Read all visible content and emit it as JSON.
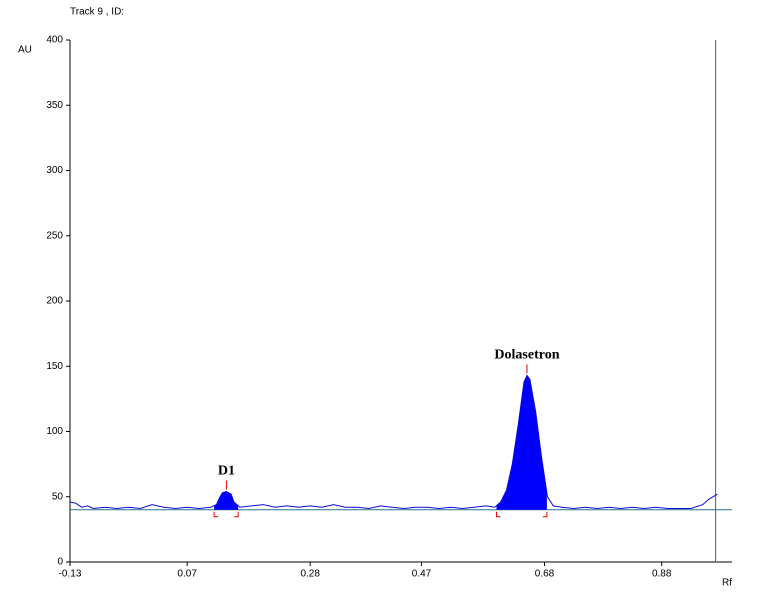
{
  "chart_data": {
    "type": "line",
    "title": "Track  9 , ID:",
    "y_label": "AU",
    "x_label": "Rf",
    "xlim": [
      -0.13,
      1.0
    ],
    "ylim": [
      0,
      400
    ],
    "xticks": [
      -0.13,
      0.07,
      0.28,
      0.47,
      0.68,
      0.88
    ],
    "yticks": [
      0,
      50,
      100,
      150,
      200,
      250,
      300,
      350,
      400
    ],
    "color": "#0b0bd6",
    "baseline": 40,
    "end_line": 0.972,
    "x": [
      -0.13,
      -0.12,
      -0.11,
      -0.1,
      -0.09,
      -0.07,
      -0.05,
      -0.03,
      -0.01,
      0.01,
      0.03,
      0.05,
      0.07,
      0.09,
      0.11,
      0.12,
      0.125,
      0.13,
      0.137,
      0.145,
      0.15,
      0.16,
      0.18,
      0.2,
      0.22,
      0.24,
      0.26,
      0.28,
      0.3,
      0.32,
      0.34,
      0.36,
      0.38,
      0.4,
      0.42,
      0.44,
      0.46,
      0.48,
      0.5,
      0.52,
      0.54,
      0.56,
      0.58,
      0.595,
      0.605,
      0.615,
      0.625,
      0.635,
      0.645,
      0.65,
      0.655,
      0.665,
      0.675,
      0.685,
      0.695,
      0.71,
      0.73,
      0.75,
      0.77,
      0.79,
      0.81,
      0.83,
      0.85,
      0.87,
      0.89,
      0.91,
      0.93,
      0.95,
      0.96,
      0.975
    ],
    "values": [
      46,
      45,
      42,
      43,
      41,
      42,
      41,
      42,
      41,
      44,
      42,
      41,
      42,
      41,
      42,
      44,
      49,
      53,
      54,
      52,
      46,
      42,
      43,
      44,
      42,
      43,
      42,
      43,
      42,
      44,
      42,
      42,
      41,
      43,
      42,
      41,
      42,
      42,
      41,
      42,
      41,
      42,
      43,
      42,
      46,
      55,
      75,
      105,
      138,
      143,
      140,
      115,
      80,
      50,
      43,
      42,
      41,
      42,
      41,
      42,
      41,
      42,
      41,
      42,
      41,
      41,
      41,
      44,
      48,
      52
    ],
    "peaks": [
      {
        "label": "D1",
        "start": 0.116,
        "end": 0.157,
        "apex": 0.137
      },
      {
        "label": "Dolasetron",
        "start": 0.598,
        "end": 0.684,
        "apex": 0.65
      }
    ]
  }
}
